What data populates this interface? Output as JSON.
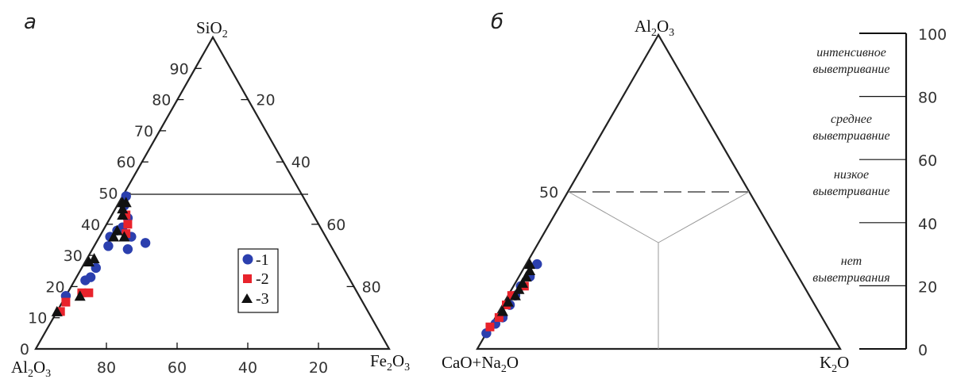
{
  "panels": {
    "a": {
      "label": "а"
    },
    "b": {
      "label": "б"
    }
  },
  "chart_data": [
    {
      "type": "scatter",
      "subtype": "ternary",
      "panel": "а",
      "vertices": {
        "top": {
          "main": "SiO",
          "sub": "2"
        },
        "left": {
          "main": "Al",
          "sub": "2",
          "main2": "O",
          "sub2": "3"
        },
        "right": {
          "main": "Fe",
          "sub": "2",
          "main2": "O",
          "sub2": "3"
        }
      },
      "axis_left_ticks": [
        "0",
        "10",
        "20",
        "30",
        "40",
        "50",
        "60",
        "70",
        "80",
        "90"
      ],
      "axis_right_ticks": [
        "20",
        "40",
        "60",
        "80"
      ],
      "axis_bottom_ticks": [
        "80",
        "60",
        "40",
        "20"
      ],
      "reference_line": {
        "sio2": 50
      },
      "legend": [
        {
          "marker": "circle",
          "color": "#2b3fae",
          "label": "-1"
        },
        {
          "marker": "square",
          "color": "#e8232c",
          "label": "-2"
        },
        {
          "marker": "triangle",
          "color": "#111111",
          "label": "-3"
        }
      ],
      "series": [
        {
          "marker": "circle",
          "color": "#2b3fae",
          "points": [
            [
              17,
              83,
              0
            ],
            [
              22,
              75,
              3
            ],
            [
              23,
              73,
              4
            ],
            [
              26,
              70,
              4
            ],
            [
              33,
              63,
              4
            ],
            [
              36,
              61,
              3
            ],
            [
              38,
              58,
              4
            ],
            [
              39,
              56,
              5
            ],
            [
              36,
              55,
              9
            ],
            [
              46,
              52,
              2
            ],
            [
              49,
              50,
              1
            ],
            [
              42,
              53,
              5
            ],
            [
              32,
              58,
              10
            ],
            [
              34,
              52,
              14
            ]
          ]
        },
        {
          "marker": "square",
          "color": "#e8232c",
          "points": [
            [
              15,
              84,
              1
            ],
            [
              12,
              87,
              1
            ],
            [
              18,
              78,
              4
            ],
            [
              18,
              76,
              6
            ],
            [
              43,
              53,
              4
            ],
            [
              40,
              54,
              6
            ],
            [
              37,
              56,
              7
            ]
          ]
        },
        {
          "marker": "triangle",
          "color": "#111111",
          "points": [
            [
              12,
              88,
              0
            ],
            [
              17,
              79,
              4
            ],
            [
              28,
              71,
              1
            ],
            [
              29,
              69,
              2
            ],
            [
              36,
              60,
              4
            ],
            [
              38,
              58,
              4
            ],
            [
              45,
              53,
              2
            ],
            [
              47,
              51,
              2
            ],
            [
              47,
              52,
              1
            ],
            [
              43,
              54,
              3
            ],
            [
              36,
              57,
              7
            ]
          ]
        }
      ]
    },
    {
      "type": "scatter",
      "subtype": "ternary",
      "panel": "б",
      "vertices": {
        "top": {
          "main": "Al",
          "sub": "2",
          "main2": "O",
          "sub2": "3"
        },
        "left": {
          "main": "CaO+Na",
          "sub": "2",
          "main2": "O"
        },
        "right": {
          "main": "K",
          "sub": "2",
          "main2": "O"
        }
      },
      "side_tick": "50",
      "reference_line": {
        "al2o3": 50
      },
      "scale": {
        "ticks": [
          "100",
          "80",
          "60",
          "40",
          "20",
          "0"
        ],
        "zones": [
          {
            "line1": "интенсивное",
            "line2": "выветривание"
          },
          {
            "line1": "среднее",
            "line2": "выветриавние"
          },
          {
            "line1": "низкое",
            "line2": "выветривание"
          },
          {
            "line1": "нет",
            "line2": "выветривания"
          }
        ]
      },
      "series": [
        {
          "marker": "circle",
          "color": "#2b3fae",
          "points": [
            [
              5,
              95,
              0
            ],
            [
              8,
              91,
              1
            ],
            [
              10,
              88,
              2
            ],
            [
              14,
              84,
              2
            ],
            [
              17,
              81,
              2
            ],
            [
              20,
              78,
              2
            ],
            [
              23,
              74,
              3
            ],
            [
              27,
              70,
              3
            ]
          ]
        },
        {
          "marker": "square",
          "color": "#e8232c",
          "points": [
            [
              7,
              93,
              0
            ],
            [
              10,
              89,
              1
            ],
            [
              14,
              85,
              1
            ],
            [
              17,
              82,
              1
            ],
            [
              20,
              77,
              3
            ]
          ]
        },
        {
          "marker": "triangle",
          "color": "#111111",
          "points": [
            [
              12,
              87,
              1
            ],
            [
              15,
              84,
              1
            ],
            [
              17,
              81,
              2
            ],
            [
              19,
              79,
              2
            ],
            [
              21,
              77,
              2
            ],
            [
              23,
              75,
              2
            ],
            [
              25,
              73,
              2
            ],
            [
              27,
              72,
              1
            ]
          ]
        }
      ]
    }
  ]
}
